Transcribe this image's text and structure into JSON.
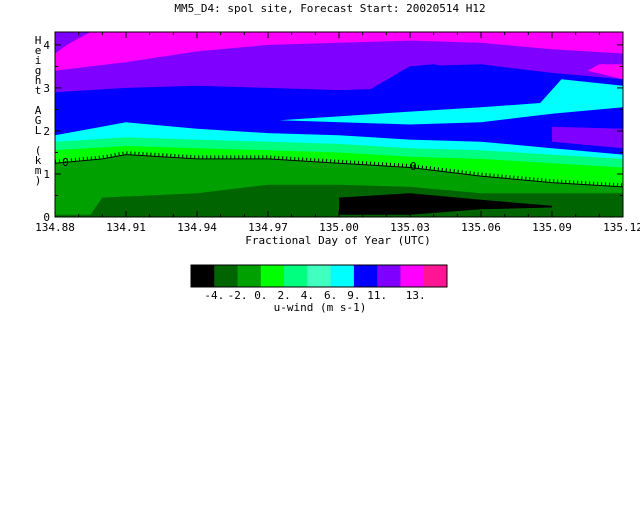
{
  "chart_data": {
    "type": "heatmap",
    "title": "MM5_D4: spol site,  Forecast Start: 20020514 H12",
    "xlabel": "Fractional Day of Year (UTC)",
    "ylabel": "Height AGL (km)",
    "xlim": [
      134.88,
      135.12
    ],
    "ylim": [
      0,
      4.3
    ],
    "x_ticks": [
      "134.88",
      "134.91",
      "134.94",
      "134.97",
      "135.00",
      "135.03",
      "135.06",
      "135.09",
      "135.12"
    ],
    "y_ticks": [
      "0",
      "1",
      "2",
      "3",
      "4"
    ],
    "zero_contour_label": "0",
    "colorbar": {
      "label": "u-wind (m s-1)",
      "tick_labels": [
        "-4.",
        "-2.",
        "0.",
        "2.",
        "4.",
        "6.",
        "9.",
        "11.",
        "13."
      ],
      "colors": [
        "#000000",
        "#006400",
        "#00a000",
        "#00ff00",
        "#00ff7f",
        "#40ffbf",
        "#00ffff",
        "#0000ff",
        "#8000ff",
        "#ff00ff",
        "#ff1493"
      ]
    },
    "bands": [
      {
        "level": "-4 to -2",
        "color": "#000000",
        "bottom": [
          [
            135.0,
            0.05
          ],
          [
            135.03,
            0.05
          ],
          [
            135.06,
            0.18
          ],
          [
            135.09,
            0.22
          ]
        ],
        "top": [
          [
            135.0,
            0.45
          ],
          [
            135.03,
            0.55
          ],
          [
            135.06,
            0.4
          ],
          [
            135.09,
            0.26
          ]
        ]
      },
      {
        "level": "-2 to 0",
        "color": "#006400",
        "bottom": [
          [
            134.88,
            0
          ],
          [
            135.12,
            0
          ]
        ],
        "top": [
          [
            134.88,
            0.05
          ],
          [
            134.895,
            0.05
          ],
          [
            134.9,
            0.45
          ],
          [
            134.94,
            0.55
          ],
          [
            134.97,
            0.75
          ],
          [
            135.0,
            0.75
          ],
          [
            135.03,
            0.7
          ],
          [
            135.06,
            0.55
          ],
          [
            135.09,
            0.55
          ],
          [
            135.12,
            0.55
          ]
        ]
      },
      {
        "level": "0 to 2",
        "color": "#00a000",
        "bottom": [
          [
            134.88,
            0
          ],
          [
            135.12,
            0
          ]
        ],
        "top": [
          [
            134.88,
            1.25
          ],
          [
            134.9,
            1.35
          ],
          [
            134.91,
            1.45
          ],
          [
            134.94,
            1.35
          ],
          [
            134.97,
            1.35
          ],
          [
            135.0,
            1.25
          ],
          [
            135.03,
            1.15
          ],
          [
            135.06,
            0.95
          ],
          [
            135.09,
            0.8
          ],
          [
            135.12,
            0.7
          ]
        ]
      },
      {
        "level": "2 to 4",
        "color": "#00ff00",
        "bottom": [
          [
            134.88,
            0
          ],
          [
            135.12,
            0
          ]
        ],
        "top": [
          [
            134.88,
            1.55
          ],
          [
            134.91,
            1.65
          ],
          [
            134.94,
            1.6
          ],
          [
            134.97,
            1.55
          ],
          [
            135.0,
            1.5
          ],
          [
            135.03,
            1.4
          ],
          [
            135.06,
            1.35
          ],
          [
            135.09,
            1.25
          ],
          [
            135.12,
            1.15
          ]
        ]
      },
      {
        "level": "4 to 5",
        "color": "#00ff7f",
        "bottom": [
          [
            134.88,
            0
          ],
          [
            135.12,
            0
          ]
        ],
        "top": [
          [
            134.88,
            1.75
          ],
          [
            134.91,
            1.85
          ],
          [
            134.94,
            1.8
          ],
          [
            134.97,
            1.75
          ],
          [
            135.0,
            1.7
          ],
          [
            135.03,
            1.6
          ],
          [
            135.06,
            1.55
          ],
          [
            135.09,
            1.45
          ],
          [
            135.12,
            1.35
          ]
        ]
      },
      {
        "level": "5 to 6",
        "color": "#00ffff",
        "bottom": [
          [
            134.88,
            0
          ],
          [
            135.12,
            0
          ]
        ],
        "top": [
          [
            134.88,
            1.9
          ],
          [
            134.91,
            2.2
          ],
          [
            134.94,
            2.05
          ],
          [
            134.97,
            1.95
          ],
          [
            135.0,
            1.9
          ],
          [
            135.03,
            1.8
          ],
          [
            135.06,
            1.75
          ],
          [
            135.09,
            1.6
          ],
          [
            135.12,
            1.45
          ]
        ]
      },
      {
        "level": "6 to 9",
        "color": "#0000ff",
        "bottom": [
          [
            134.88,
            0
          ],
          [
            135.12,
            0
          ]
        ],
        "top": [
          [
            134.88,
            2.9
          ],
          [
            134.91,
            3.0
          ],
          [
            134.94,
            3.05
          ],
          [
            134.97,
            3.0
          ],
          [
            135.0,
            2.95
          ],
          [
            135.03,
            3.0
          ],
          [
            135.06,
            2.95
          ],
          [
            135.09,
            2.9
          ],
          [
            135.12,
            2.85
          ]
        ]
      },
      {
        "level": "9 to 11",
        "color": "#8000ff",
        "bottom": [
          [
            134.88,
            0
          ],
          [
            135.12,
            0
          ]
        ],
        "top": [
          [
            134.88,
            3.4
          ],
          [
            134.91,
            3.6
          ],
          [
            134.94,
            3.85
          ],
          [
            134.97,
            4.0
          ],
          [
            135.0,
            4.05
          ],
          [
            135.03,
            4.1
          ],
          [
            135.06,
            4.05
          ],
          [
            135.09,
            3.9
          ],
          [
            135.12,
            3.8
          ]
        ]
      },
      {
        "level": "11 to 13",
        "color": "#ff00ff",
        "bottom": [
          [
            134.88,
            0
          ],
          [
            135.12,
            0
          ]
        ],
        "top": [
          [
            134.88,
            4.3
          ],
          [
            135.12,
            4.3
          ]
        ]
      }
    ],
    "features": [
      {
        "level": "6 to 9 jet",
        "color": "#0000ff",
        "points": [
          [
            134.988,
            2.15
          ],
          [
            135.03,
            2.05
          ],
          [
            135.06,
            2.1
          ],
          [
            135.09,
            2.25
          ],
          [
            135.12,
            2.4
          ],
          [
            135.12,
            3.2
          ],
          [
            135.09,
            3.35
          ],
          [
            135.06,
            3.55
          ],
          [
            135.03,
            3.5
          ],
          [
            135.0,
            2.55
          ]
        ]
      },
      {
        "level": "5 to 6 jet",
        "color": "#00ffff",
        "points": [
          [
            134.975,
            2.25
          ],
          [
            135.03,
            2.15
          ],
          [
            135.06,
            2.2
          ],
          [
            135.09,
            2.4
          ],
          [
            135.12,
            2.55
          ],
          [
            135.12,
            3.05
          ],
          [
            135.094,
            3.2
          ],
          [
            135.085,
            2.65
          ],
          [
            135.06,
            2.55
          ],
          [
            135.03,
            2.45
          ]
        ]
      },
      {
        "level": "9 to 11 pocket",
        "color": "#8000ff",
        "points": [
          [
            135.09,
            1.75
          ],
          [
            135.12,
            1.6
          ],
          [
            135.12,
            2.05
          ],
          [
            135.09,
            2.1
          ]
        ]
      },
      {
        "level": "6 to 9 pocket",
        "color": "#0000ff",
        "points": [
          [
            135.025,
            3.35
          ],
          [
            135.035,
            3.25
          ],
          [
            135.045,
            3.3
          ],
          [
            135.05,
            3.45
          ],
          [
            135.04,
            3.55
          ],
          [
            135.03,
            3.5
          ]
        ]
      },
      {
        "level": "11 to 13 corner",
        "color": "#ff00ff",
        "points": [
          [
            135.105,
            3.4
          ],
          [
            135.12,
            3.2
          ],
          [
            135.12,
            3.55
          ],
          [
            135.11,
            3.55
          ]
        ]
      },
      {
        "level": "9 to 11 top-left",
        "color": "#8000ff",
        "points": [
          [
            134.88,
            4.3
          ],
          [
            134.88,
            3.8
          ],
          [
            134.885,
            4.0
          ],
          [
            134.895,
            4.3
          ]
        ]
      }
    ],
    "zero_contour": [
      [
        134.88,
        1.25
      ],
      [
        134.9,
        1.35
      ],
      [
        134.91,
        1.45
      ],
      [
        134.94,
        1.35
      ],
      [
        134.97,
        1.35
      ],
      [
        135.0,
        1.25
      ],
      [
        135.03,
        1.15
      ],
      [
        135.06,
        0.95
      ],
      [
        135.09,
        0.8
      ],
      [
        135.12,
        0.7
      ]
    ],
    "grid": false,
    "legend": "colorbar-below"
  }
}
